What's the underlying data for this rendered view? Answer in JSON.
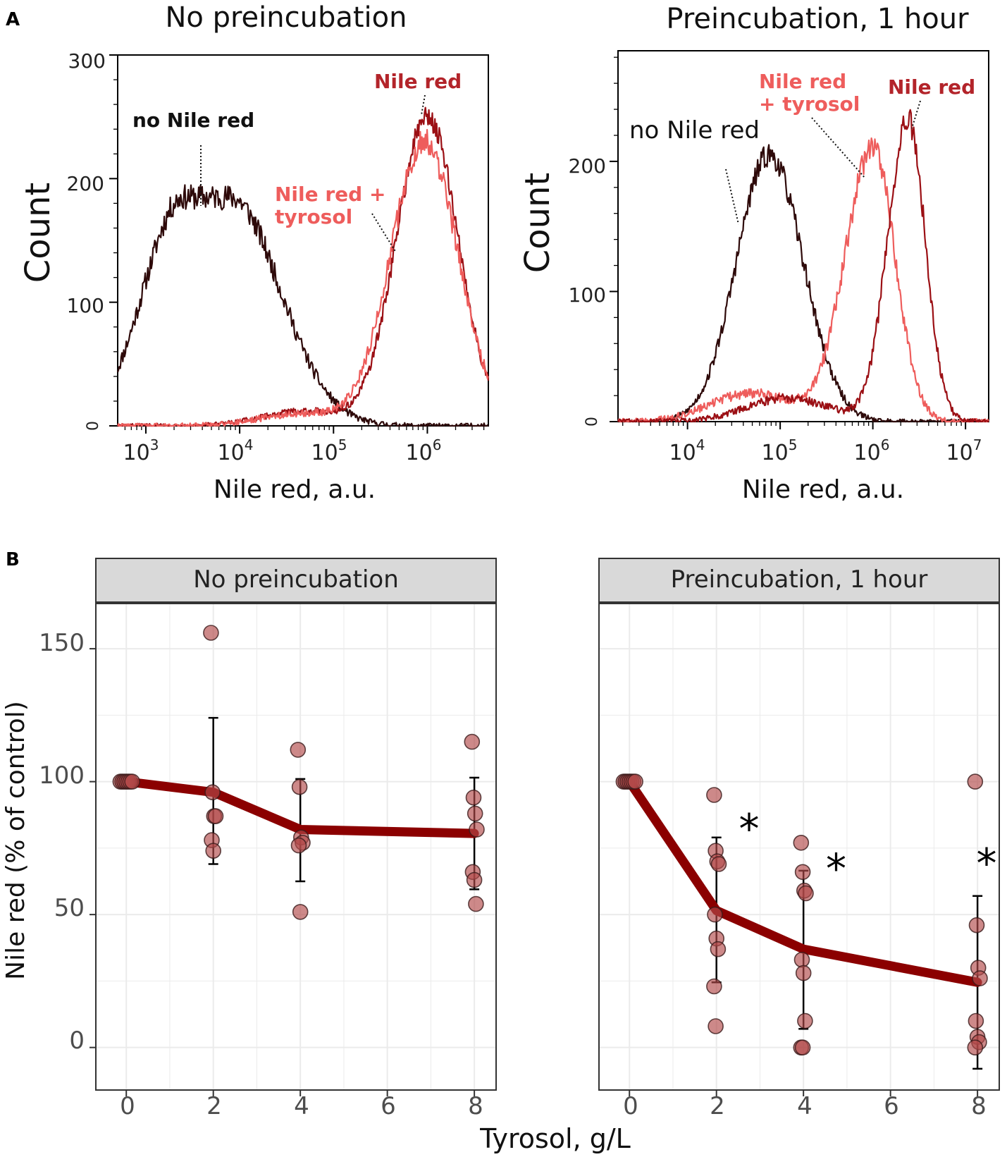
{
  "panel_labels": {
    "a": "A",
    "b": "B"
  },
  "tick_labels": {
    "log_base": "10",
    "exp_a": [
      "3",
      "4",
      "5",
      "6"
    ],
    "exp_b": [
      "4",
      "5",
      "6",
      "7"
    ]
  },
  "colors": {
    "no_nile_red": "#2e0a0a",
    "nile_red": "#9b0f14",
    "nile_red_tyrosol": "#ee5d5c",
    "line": "#8b0000",
    "point_fill": "#b24a4a",
    "strip": "#d9d9d9",
    "grid": "#ebebeb"
  },
  "chart_data": [
    {
      "id": "A-left",
      "type": "line",
      "title": "No preincubation",
      "xlabel": "Nile red, a.u.",
      "ylabel": "Count",
      "xscale": "log",
      "xlim_log10": [
        2.7,
        6.65
      ],
      "ylim": [
        0,
        300
      ],
      "yticks": [
        "0",
        "100",
        "200",
        "300"
      ],
      "annotations": [
        "no Nile red",
        "Nile red",
        "Nile red +",
        "tyrosol"
      ],
      "series": [
        {
          "name": "no Nile red",
          "color_key": "no_nile_red",
          "peak_log10": 3.65,
          "peak_count": 185,
          "spread": 0.42,
          "flat_top": 0.25,
          "right_skew": 1.25,
          "noise": 10
        },
        {
          "name": "Nile red",
          "color_key": "nile_red",
          "peak_log10": 6.0,
          "peak_count": 250,
          "spread": 0.33,
          "flat_top": 0.0,
          "right_skew": 1.0,
          "noise": 9,
          "tail": 12
        },
        {
          "name": "Nile red + tyrosol",
          "color_key": "nile_red_tyrosol",
          "peak_log10": 5.97,
          "peak_count": 230,
          "spread": 0.36,
          "flat_top": 0.0,
          "right_skew": 1.0,
          "noise": 10,
          "tail": 10
        }
      ]
    },
    {
      "id": "A-right",
      "type": "line",
      "title": "Preincubation, 1 hour",
      "xlabel": "Nile red, a.u.",
      "ylabel": "Count",
      "xscale": "log",
      "xlim_log10": [
        3.25,
        7.25
      ],
      "ylim": [
        0,
        285
      ],
      "yticks": [
        "0",
        "100",
        "200"
      ],
      "annotations": [
        "no Nile red",
        "Nile red",
        "+ tyrosol",
        "Nile red"
      ],
      "series": [
        {
          "name": "no Nile red",
          "color_key": "no_nile_red",
          "peak_log10": 4.88,
          "peak_count": 205,
          "spread": 0.35,
          "flat_top": 0.0,
          "right_skew": 1.05,
          "noise": 9
        },
        {
          "name": "Nile red + tyrosol",
          "color_key": "nile_red_tyrosol",
          "peak_log10": 6.0,
          "peak_count": 210,
          "spread": 0.3,
          "flat_top": 0.0,
          "right_skew": 0.8,
          "noise": 10,
          "tail": 22
        },
        {
          "name": "Nile red",
          "color_key": "nile_red",
          "peak_log10": 6.38,
          "peak_count": 232,
          "spread": 0.22,
          "flat_top": 0.0,
          "right_skew": 0.85,
          "noise": 10,
          "tail": 18
        }
      ]
    },
    {
      "id": "B",
      "type": "scatter",
      "xlabel": "Tyrosol, g/L",
      "ylabel": "Nile red (% of control)",
      "xlim": [
        -0.7,
        8.5
      ],
      "ylim": [
        -16,
        167
      ],
      "xticks": [
        "0",
        "2",
        "4",
        "6",
        "8"
      ],
      "yticks": [
        "0",
        "50",
        "100",
        "150"
      ],
      "facets": [
        {
          "strip": "No preincubation",
          "points": [
            {
              "x": 0,
              "y": [
                100,
                100,
                100,
                100,
                100,
                100,
                100
              ]
            },
            {
              "x": 2,
              "y": [
                156,
                96,
                87,
                87,
                78,
                74
              ]
            },
            {
              "x": 4,
              "y": [
                112,
                98,
                79,
                77,
                76,
                51
              ]
            },
            {
              "x": 8,
              "y": [
                115,
                94,
                88,
                82,
                66,
                63,
                54
              ]
            }
          ],
          "mean": [
            {
              "x": 0,
              "y": 100
            },
            {
              "x": 2,
              "y": 96
            },
            {
              "x": 4,
              "y": 82
            },
            {
              "x": 8,
              "y": 80.5
            }
          ],
          "error_bars": [
            {
              "x": 0,
              "low": 100,
              "high": 100
            },
            {
              "x": 2,
              "low": 69,
              "high": 124
            },
            {
              "x": 4,
              "low": 62.5,
              "high": 101
            },
            {
              "x": 8,
              "low": 59.5,
              "high": 101.5
            }
          ],
          "significance": []
        },
        {
          "strip": "Preincubation, 1 hour",
          "points": [
            {
              "x": 0,
              "y": [
                100,
                100,
                100,
                100,
                100,
                100,
                100
              ]
            },
            {
              "x": 2,
              "y": [
                95,
                74,
                70,
                69,
                50,
                41,
                37,
                23,
                8
              ]
            },
            {
              "x": 4,
              "y": [
                77,
                66,
                59,
                58,
                33,
                28,
                10,
                0,
                0
              ]
            },
            {
              "x": 8,
              "y": [
                100,
                46,
                30,
                26,
                10,
                4,
                2,
                0
              ]
            }
          ],
          "mean": [
            {
              "x": 0,
              "y": 100
            },
            {
              "x": 2,
              "y": 51.5
            },
            {
              "x": 4,
              "y": 37
            },
            {
              "x": 8,
              "y": 24.5
            }
          ],
          "error_bars": [
            {
              "x": 2,
              "low": 24.5,
              "high": 79
            },
            {
              "x": 4,
              "low": 7,
              "high": 66.5
            },
            {
              "x": 8,
              "low": -8,
              "high": 57
            }
          ],
          "significance": [
            {
              "x": 2,
              "y": 77,
              "label": "*"
            },
            {
              "x": 4,
              "y": 62,
              "label": "*"
            },
            {
              "x": 8,
              "y": 64,
              "label": "*"
            }
          ]
        }
      ]
    }
  ]
}
